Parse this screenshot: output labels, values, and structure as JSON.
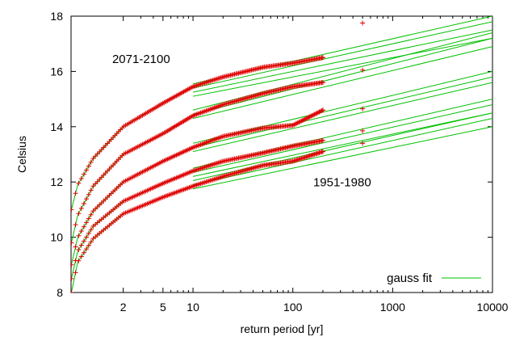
{
  "chart_data": {
    "type": "scatter",
    "title": "",
    "xlabel": "return period [yr]",
    "ylabel": "Celsius",
    "xscale": "log",
    "xlim": [
      0.6,
      10000
    ],
    "ylim": [
      8,
      18
    ],
    "xticks": [
      2,
      5,
      10,
      100,
      1000,
      10000
    ],
    "xtick_labels": [
      "2",
      "5",
      "10",
      "100",
      "1000",
      "10000"
    ],
    "yticks": [
      8,
      10,
      12,
      14,
      16,
      18
    ],
    "ytick_labels": [
      "8",
      "10",
      "12",
      "14",
      "16",
      "18"
    ],
    "grid": false,
    "legend": {
      "position": "bottom-right",
      "entries": [
        {
          "label": "gauss fit",
          "color": "#00c000"
        }
      ]
    },
    "annotations": [
      {
        "text": "2071-2100",
        "x": 1.55,
        "y": 16.3
      },
      {
        "text": "1951-1980",
        "x": 160,
        "y": 11.85
      }
    ],
    "colors": {
      "points": "#e00000",
      "fit": "#00c000"
    },
    "series": [
      {
        "anchors": [
          [
            0.605,
            11.0
          ],
          [
            0.7,
            11.9
          ],
          [
            1.0,
            12.85
          ],
          [
            2.0,
            14.0
          ],
          [
            5.0,
            14.85
          ],
          [
            10.0,
            15.45
          ],
          [
            20.0,
            15.8
          ],
          [
            50.0,
            16.15
          ],
          [
            100.0,
            16.3
          ],
          [
            200.0,
            16.5
          ],
          [
            500.0,
            17.75
          ]
        ],
        "fit": [
          [
            10,
            15.55
          ],
          [
            10000,
            18.0
          ],
          [
            10,
            15.4
          ],
          [
            10000,
            17.8
          ],
          [
            10,
            15.25
          ],
          [
            10000,
            17.5
          ],
          [
            10,
            15.1
          ],
          [
            10000,
            17.2
          ]
        ]
      },
      {
        "anchors": [
          [
            0.605,
            9.8
          ],
          [
            0.7,
            10.8
          ],
          [
            1.0,
            11.85
          ],
          [
            2.0,
            13.0
          ],
          [
            5.0,
            13.75
          ],
          [
            10.0,
            14.4
          ],
          [
            20.0,
            14.8
          ],
          [
            50.0,
            15.2
          ],
          [
            100.0,
            15.45
          ],
          [
            200.0,
            15.6
          ],
          [
            500.0,
            16.05
          ]
        ],
        "fit": [
          [
            10,
            14.6
          ],
          [
            10000,
            17.4
          ],
          [
            10,
            14.45
          ],
          [
            10000,
            17.2
          ],
          [
            10,
            14.3
          ],
          [
            10000,
            16.9
          ]
        ]
      },
      {
        "anchors": [
          [
            0.605,
            9.0
          ],
          [
            0.7,
            10.0
          ],
          [
            1.0,
            10.95
          ],
          [
            2.0,
            12.0
          ],
          [
            5.0,
            12.75
          ],
          [
            10.0,
            13.25
          ],
          [
            20.0,
            13.65
          ],
          [
            50.0,
            13.95
          ],
          [
            100.0,
            14.05
          ],
          [
            200.0,
            14.6
          ],
          [
            500.0,
            14.65
          ]
        ],
        "fit": [
          [
            10,
            13.4
          ],
          [
            10000,
            16.0
          ],
          [
            10,
            13.25
          ],
          [
            10000,
            15.8
          ],
          [
            10,
            13.1
          ],
          [
            10000,
            15.6
          ]
        ]
      },
      {
        "anchors": [
          [
            0.605,
            8.5
          ],
          [
            0.7,
            9.5
          ],
          [
            1.0,
            10.4
          ],
          [
            2.0,
            11.3
          ],
          [
            5.0,
            11.95
          ],
          [
            10.0,
            12.4
          ],
          [
            20.0,
            12.75
          ],
          [
            50.0,
            13.05
          ],
          [
            100.0,
            13.3
          ],
          [
            200.0,
            13.5
          ],
          [
            500.0,
            13.85
          ]
        ],
        "fit": [
          [
            10,
            12.5
          ],
          [
            10000,
            15.0
          ],
          [
            10,
            12.35
          ],
          [
            10000,
            14.8
          ],
          [
            10,
            12.2
          ],
          [
            10000,
            14.5
          ]
        ]
      },
      {
        "anchors": [
          [
            0.605,
            8.0
          ],
          [
            0.7,
            9.1
          ],
          [
            1.0,
            9.95
          ],
          [
            2.0,
            10.85
          ],
          [
            5.0,
            11.45
          ],
          [
            10.0,
            11.85
          ],
          [
            20.0,
            12.2
          ],
          [
            50.0,
            12.6
          ],
          [
            100.0,
            12.75
          ],
          [
            200.0,
            13.1
          ],
          [
            500.0,
            13.4
          ]
        ],
        "fit": [
          [
            10,
            12.05
          ],
          [
            10000,
            14.5
          ],
          [
            10,
            11.9
          ],
          [
            10000,
            14.3
          ],
          [
            10,
            11.75
          ],
          [
            10000,
            14.0
          ]
        ]
      }
    ]
  }
}
